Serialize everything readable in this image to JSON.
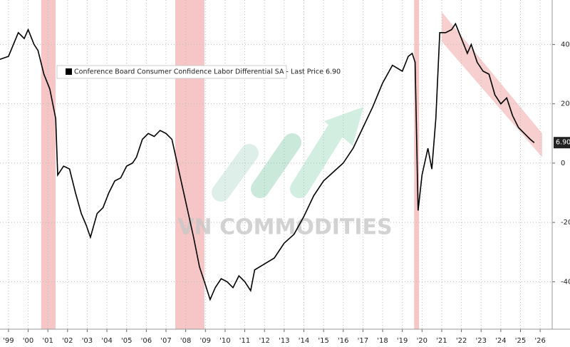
{
  "chart_data": {
    "type": "line",
    "legend_text": "Conference Board Consumer Confidence Labor Differential SA - Last Price 6.90",
    "watermark": "VN COMMODITIES",
    "series": [
      {
        "name": "Conference Board Consumer Confidence Labor Differential SA",
        "color": "#000000",
        "x": [
          1999.07,
          1999.5,
          2000.0,
          2000.3,
          2000.5,
          2000.8,
          2001.0,
          2001.3,
          2001.6,
          2001.9,
          2002.0,
          2002.3,
          2002.6,
          2002.9,
          2003.2,
          2003.45,
          2003.66,
          2004.0,
          2004.3,
          2004.6,
          2004.9,
          2005.2,
          2005.5,
          2005.8,
          2006.0,
          2006.3,
          2006.6,
          2006.9,
          2007.2,
          2007.5,
          2007.8,
          2008.0,
          2008.3,
          2008.6,
          2008.9,
          2009.2,
          2009.45,
          2009.74,
          2010.0,
          2010.3,
          2010.6,
          2010.9,
          2011.2,
          2011.5,
          2011.8,
          2012.0,
          2012.5,
          2013.0,
          2013.5,
          2014.0,
          2014.5,
          2015.0,
          2015.5,
          2016.0,
          2016.5,
          2017.0,
          2017.5,
          2018.0,
          2018.5,
          2019.0,
          2019.5,
          2019.8,
          2020.0,
          2020.15,
          2020.3,
          2020.5,
          2020.8,
          2021.0,
          2021.2,
          2021.4,
          2021.7,
          2022.0,
          2022.2,
          2022.5,
          2022.8,
          2023.0,
          2023.3,
          2023.6,
          2023.9,
          2024.2,
          2024.5,
          2024.8,
          2025.1,
          2025.4,
          2025.7,
          2026.0,
          2026.2
        ],
        "values": [
          35,
          36,
          44,
          42,
          45,
          40,
          38,
          30,
          25,
          15,
          -4,
          -1,
          -2,
          -10,
          -17,
          -21,
          -25,
          -17,
          -15,
          -10,
          -6,
          -5,
          -1,
          0,
          2,
          8,
          10,
          9,
          11,
          10,
          8,
          2,
          -7,
          -16,
          -25,
          -35,
          -40,
          -46,
          -42,
          -39,
          -40,
          -42,
          -38,
          -40,
          -43,
          -36,
          -34,
          -32,
          -27,
          -24,
          -18,
          -11,
          -6,
          -3,
          0,
          5,
          12,
          19,
          27,
          33,
          31,
          36,
          37,
          34,
          -16,
          -4,
          5,
          -2,
          15,
          44,
          44,
          45,
          47,
          42,
          37,
          40,
          34,
          31,
          30,
          23,
          20,
          22,
          16,
          12,
          10,
          8,
          6.9
        ]
      }
    ],
    "last_value": {
      "value": 6.9,
      "label": "6.90"
    },
    "recessions": [
      [
        2001.16,
        2001.89
      ],
      [
        2007.97,
        2009.45
      ],
      [
        2020.1,
        2020.35
      ]
    ],
    "trend_band": {
      "x": [
        2021.5,
        2026.6
      ],
      "upper": [
        51,
        10
      ],
      "lower": [
        41,
        2
      ]
    },
    "xlim": [
      1999.07,
      2027.11
    ],
    "ylim": [
      -56,
      55
    ],
    "yticks": [
      -40,
      -20,
      0,
      20,
      40
    ],
    "xticks": [
      {
        "value": 1999.5,
        "label": "'99"
      },
      {
        "value": 2000.5,
        "label": "'00"
      },
      {
        "value": 2001.5,
        "label": "'01"
      },
      {
        "value": 2002.5,
        "label": "'02"
      },
      {
        "value": 2003.5,
        "label": "'03"
      },
      {
        "value": 2004.5,
        "label": "'04"
      },
      {
        "value": 2005.5,
        "label": "'05"
      },
      {
        "value": 2006.5,
        "label": "'06"
      },
      {
        "value": 2007.5,
        "label": "'07"
      },
      {
        "value": 2008.5,
        "label": "'08"
      },
      {
        "value": 2009.5,
        "label": "'09"
      },
      {
        "value": 2010.5,
        "label": "'10"
      },
      {
        "value": 2011.5,
        "label": "'11"
      },
      {
        "value": 2012.5,
        "label": "'12"
      },
      {
        "value": 2013.5,
        "label": "'13"
      },
      {
        "value": 2014.5,
        "label": "'14"
      },
      {
        "value": 2015.5,
        "label": "'15"
      },
      {
        "value": 2016.5,
        "label": "'16"
      },
      {
        "value": 2017.5,
        "label": "'17"
      },
      {
        "value": 2018.5,
        "label": "'18"
      },
      {
        "value": 2019.5,
        "label": "'19"
      },
      {
        "value": 2020.5,
        "label": "'20"
      },
      {
        "value": 2021.5,
        "label": "'21"
      },
      {
        "value": 2022.5,
        "label": "'22"
      },
      {
        "value": 2023.5,
        "label": "'23"
      },
      {
        "value": 2024.5,
        "label": "'24"
      },
      {
        "value": 2025.5,
        "label": "'25"
      },
      {
        "value": 2026.5,
        "label": "'26"
      }
    ],
    "grid": true
  }
}
